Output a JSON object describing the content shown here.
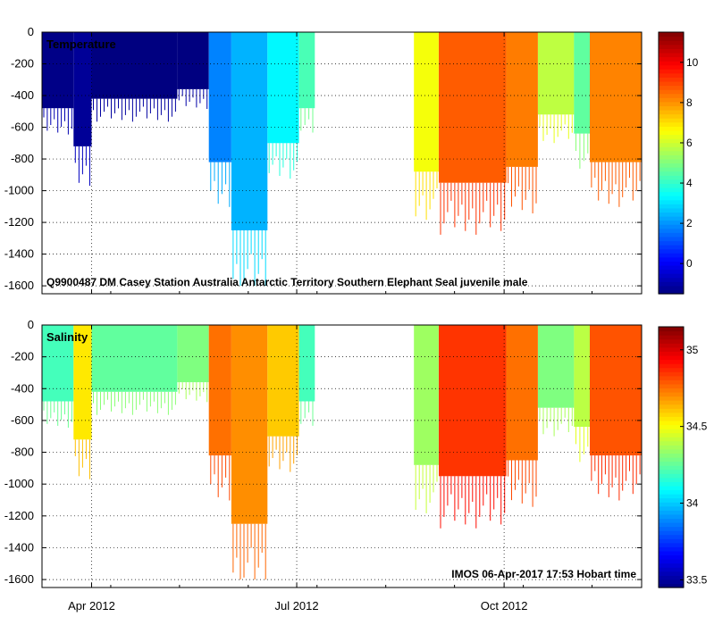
{
  "chart_data": [
    {
      "type": "heatmap",
      "panel": "temperature",
      "label": "Temperature",
      "ylim": [
        -1650,
        0
      ],
      "y_ticks": [
        0,
        -200,
        -400,
        -600,
        -800,
        -1000,
        -1200,
        -1400,
        -1600
      ],
      "colorbar": {
        "min": -1.5,
        "max": 11.5,
        "ticks": [
          0,
          2,
          4,
          6,
          8,
          10
        ]
      },
      "annotation": "Q9900487 DM Casey Station Australia Antarctic Territory Southern Elephant Seal juvenile male",
      "segments": [
        {
          "t0": 0.0,
          "t1": 14.0,
          "depth": 480,
          "value": -1.4
        },
        {
          "t0": 14.0,
          "t1": 22.0,
          "depth": 720,
          "value": -1.2
        },
        {
          "t0": 22.0,
          "t1": 60.0,
          "depth": 420,
          "value": -1.6
        },
        {
          "t0": 60.0,
          "t1": 74.0,
          "depth": 360,
          "value": -1.5
        },
        {
          "t0": 74.0,
          "t1": 84.0,
          "depth": 820,
          "value": 1.8
        },
        {
          "t0": 84.0,
          "t1": 100.0,
          "depth": 1250,
          "value": 2.4
        },
        {
          "t0": 100.0,
          "t1": 114.0,
          "depth": 700,
          "value": 3.3
        },
        {
          "t0": 114.0,
          "t1": 121.0,
          "depth": 480,
          "value": 4.3
        },
        {
          "t0": 165.0,
          "t1": 176.0,
          "depth": 880,
          "value": 6.5
        },
        {
          "t0": 176.0,
          "t1": 206.0,
          "depth": 950,
          "value": 8.7
        },
        {
          "t0": 206.0,
          "t1": 220.0,
          "depth": 850,
          "value": 8.3
        },
        {
          "t0": 220.0,
          "t1": 236.0,
          "depth": 520,
          "value": 5.8
        },
        {
          "t0": 236.0,
          "t1": 243.0,
          "depth": 640,
          "value": 4.6
        },
        {
          "t0": 243.0,
          "t1": 266.0,
          "depth": 820,
          "value": 8.2
        }
      ]
    },
    {
      "type": "heatmap",
      "panel": "salinity",
      "label": "Salinity",
      "ylim": [
        -1650,
        0
      ],
      "y_ticks": [
        0,
        -200,
        -400,
        -600,
        -800,
        -1000,
        -1200,
        -1400,
        -1600
      ],
      "colorbar": {
        "min": 33.45,
        "max": 35.15,
        "ticks": [
          33.5,
          34,
          34.5,
          35
        ],
        "tick_labels": [
          "33.5",
          "34",
          "34.5",
          "35"
        ]
      },
      "annotation": "IMOS 06-Apr-2017 17:53 Hobart time",
      "segments": [
        {
          "t0": 0.0,
          "t1": 14.0,
          "depth": 480,
          "value": 34.2
        },
        {
          "t0": 14.0,
          "t1": 22.0,
          "depth": 720,
          "value": 34.55
        },
        {
          "t0": 22.0,
          "t1": 60.0,
          "depth": 420,
          "value": 34.25
        },
        {
          "t0": 60.0,
          "t1": 74.0,
          "depth": 360,
          "value": 34.3
        },
        {
          "t0": 74.0,
          "t1": 84.0,
          "depth": 820,
          "value": 34.75
        },
        {
          "t0": 84.0,
          "t1": 100.0,
          "depth": 1250,
          "value": 34.7
        },
        {
          "t0": 100.0,
          "t1": 114.0,
          "depth": 700,
          "value": 34.6
        },
        {
          "t0": 114.0,
          "t1": 121.0,
          "depth": 480,
          "value": 34.2
        },
        {
          "t0": 165.0,
          "t1": 176.0,
          "depth": 880,
          "value": 34.35
        },
        {
          "t0": 176.0,
          "t1": 206.0,
          "depth": 950,
          "value": 34.85
        },
        {
          "t0": 206.0,
          "t1": 220.0,
          "depth": 850,
          "value": 34.75
        },
        {
          "t0": 220.0,
          "t1": 236.0,
          "depth": 520,
          "value": 34.3
        },
        {
          "t0": 236.0,
          "t1": 243.0,
          "depth": 640,
          "value": 34.4
        },
        {
          "t0": 243.0,
          "t1": 266.0,
          "depth": 820,
          "value": 34.8
        }
      ]
    }
  ],
  "x_axis": {
    "range_days": [
      0,
      266
    ],
    "ticks": [
      {
        "label": "Apr 2012",
        "day": 22
      },
      {
        "label": "Jul 2012",
        "day": 113
      },
      {
        "label": "Oct 2012",
        "day": 205
      }
    ]
  }
}
